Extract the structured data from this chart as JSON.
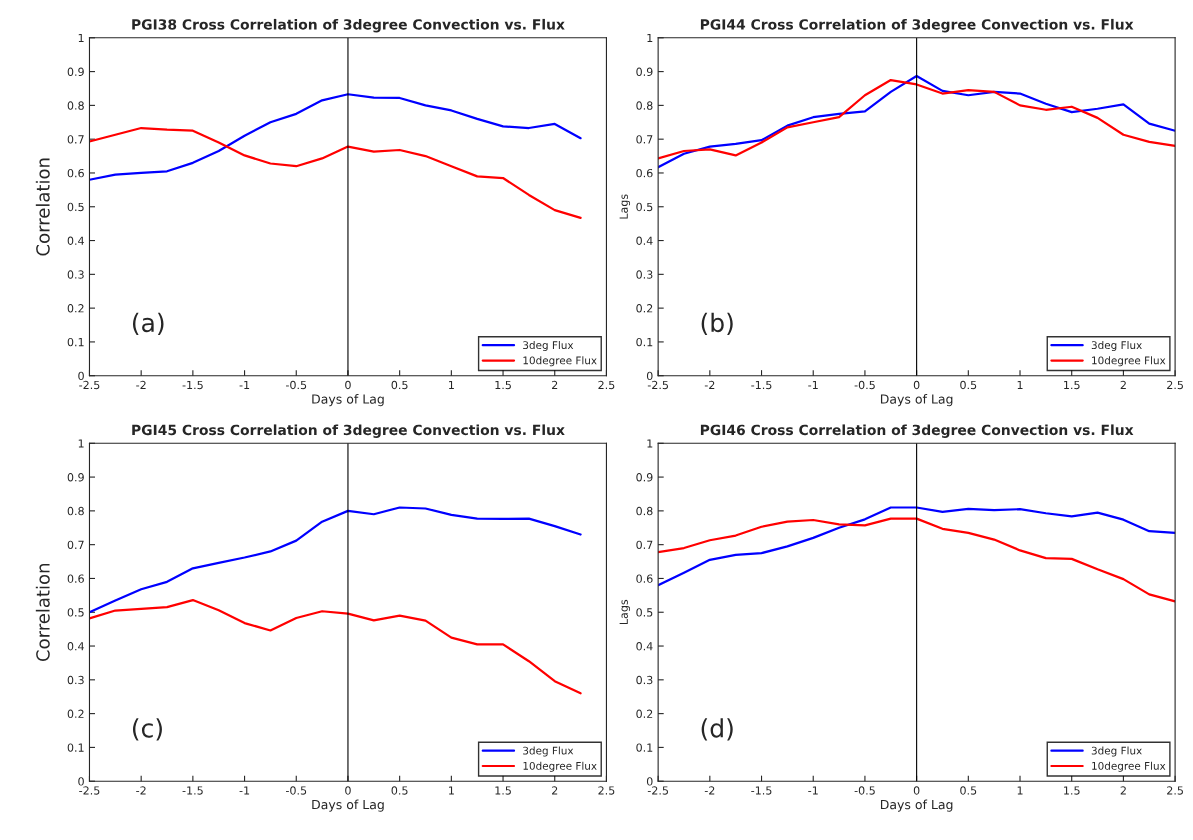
{
  "chart_data": [
    {
      "type": "line",
      "title": "PGI38 Cross Correlation of 3degree Convection vs. Flux",
      "xlabel": "Days of Lag",
      "ylabel": "Correlation",
      "annotations": [
        "(a)"
      ],
      "x": [
        -2.5,
        -2.25,
        -2,
        -1.75,
        -1.5,
        -1.25,
        -1,
        -0.75,
        -0.5,
        -0.25,
        0,
        0.25,
        0.5,
        0.75,
        1,
        1.25,
        1.5,
        1.75,
        2,
        2.25
      ],
      "series": [
        {
          "name": "3deg Flux",
          "color": "#0000ff",
          "values": [
            0.58,
            0.595,
            0.6,
            0.605,
            0.63,
            0.665,
            0.71,
            0.75,
            0.775,
            0.815,
            0.833,
            0.823,
            0.822,
            0.8,
            0.785,
            0.76,
            0.738,
            0.733,
            0.745,
            0.703
          ]
        },
        {
          "name": "10degree Flux",
          "color": "#ff0000",
          "values": [
            0.693,
            0.713,
            0.733,
            0.728,
            0.725,
            0.69,
            0.652,
            0.628,
            0.62,
            0.643,
            0.678,
            0.663,
            0.668,
            0.65,
            0.62,
            0.59,
            0.585,
            0.535,
            0.49,
            0.467
          ]
        }
      ],
      "xlim": [
        -2.5,
        2.5
      ],
      "ylim": [
        0,
        1
      ],
      "xticks": [
        -2.5,
        -2,
        -1.5,
        -1,
        -0.5,
        0,
        0.5,
        1,
        1.5,
        2,
        2.5
      ],
      "yticks": [
        0,
        0.1,
        0.2,
        0.3,
        0.4,
        0.5,
        0.6,
        0.7,
        0.8,
        0.9,
        1
      ],
      "ref_lines": [
        {
          "axis": "x",
          "value": 0,
          "color": "#000000"
        }
      ],
      "legend": "bottom right",
      "grid": false
    },
    {
      "type": "line",
      "title": "PGI44 Cross Correlation of 3degree Convection vs. Flux",
      "xlabel": "Days of Lag",
      "ylabel": "Lags",
      "annotations": [
        "(b)"
      ],
      "x": [
        -2.5,
        -2.25,
        -2,
        -1.75,
        -1.5,
        -1.25,
        -1,
        -0.75,
        -0.5,
        -0.25,
        0,
        0.25,
        0.5,
        0.75,
        1,
        1.25,
        1.5,
        1.75,
        2,
        2.25,
        2.5
      ],
      "series": [
        {
          "name": "3deg Flux",
          "color": "#0000ff",
          "values": [
            0.617,
            0.657,
            0.678,
            0.686,
            0.697,
            0.74,
            0.765,
            0.775,
            0.782,
            0.84,
            0.887,
            0.843,
            0.83,
            0.84,
            0.835,
            0.805,
            0.78,
            0.79,
            0.803,
            0.746,
            0.725
          ]
        },
        {
          "name": "10degree Flux",
          "color": "#ff0000",
          "values": [
            0.643,
            0.665,
            0.67,
            0.652,
            0.69,
            0.735,
            0.75,
            0.765,
            0.83,
            0.875,
            0.862,
            0.835,
            0.845,
            0.84,
            0.8,
            0.787,
            0.796,
            0.763,
            0.713,
            0.692,
            0.68
          ]
        }
      ],
      "xlim": [
        -2.5,
        2.5
      ],
      "ylim": [
        0,
        1
      ],
      "xticks": [
        -2.5,
        -2,
        -1.5,
        -1,
        -0.5,
        0,
        0.5,
        1,
        1.5,
        2,
        2.5
      ],
      "yticks": [
        0,
        0.1,
        0.2,
        0.3,
        0.4,
        0.5,
        0.6,
        0.7,
        0.8,
        0.9,
        1
      ],
      "ref_lines": [
        {
          "axis": "x",
          "value": 0,
          "color": "#000000"
        }
      ],
      "legend": "bottom right",
      "grid": false
    },
    {
      "type": "line",
      "title": "PGI45 Cross Correlation of 3degree Convection vs. Flux",
      "xlabel": "Days of Lag",
      "ylabel": "Correlation",
      "annotations": [
        "(c)"
      ],
      "x": [
        -2.5,
        -2.25,
        -2,
        -1.75,
        -1.5,
        -1.25,
        -1,
        -0.75,
        -0.5,
        -0.25,
        0,
        0.25,
        0.5,
        0.75,
        1,
        1.25,
        1.5,
        1.75,
        2,
        2.25
      ],
      "series": [
        {
          "name": "3deg Flux",
          "color": "#0000ff",
          "values": [
            0.5,
            0.535,
            0.568,
            0.59,
            0.63,
            0.646,
            0.662,
            0.68,
            0.712,
            0.768,
            0.8,
            0.79,
            0.81,
            0.807,
            0.788,
            0.777,
            0.776,
            0.777,
            0.755,
            0.73
          ]
        },
        {
          "name": "10degree Flux",
          "color": "#ff0000",
          "values": [
            0.482,
            0.505,
            0.51,
            0.515,
            0.536,
            0.506,
            0.468,
            0.446,
            0.483,
            0.503,
            0.496,
            0.476,
            0.49,
            0.475,
            0.425,
            0.405,
            0.405,
            0.355,
            0.296,
            0.26
          ]
        }
      ],
      "xlim": [
        -2.5,
        2.5
      ],
      "ylim": [
        0,
        1
      ],
      "xticks": [
        -2.5,
        -2,
        -1.5,
        -1,
        -0.5,
        0,
        0.5,
        1,
        1.5,
        2,
        2.5
      ],
      "yticks": [
        0,
        0.1,
        0.2,
        0.3,
        0.4,
        0.5,
        0.6,
        0.7,
        0.8,
        0.9,
        1
      ],
      "ref_lines": [
        {
          "axis": "x",
          "value": 0,
          "color": "#000000"
        }
      ],
      "legend": "bottom right",
      "grid": false
    },
    {
      "type": "line",
      "title": "PGI46 Cross Correlation of 3degree Convection vs. Flux",
      "xlabel": "Days of Lag",
      "ylabel": "Lags",
      "annotations": [
        "(d)"
      ],
      "x": [
        -2.5,
        -2.25,
        -2,
        -1.75,
        -1.5,
        -1.25,
        -1,
        -0.75,
        -0.5,
        -0.25,
        0,
        0.25,
        0.5,
        0.75,
        1,
        1.25,
        1.5,
        1.75,
        2,
        2.25,
        2.5
      ],
      "series": [
        {
          "name": "3deg Flux",
          "color": "#0000ff",
          "values": [
            0.58,
            0.617,
            0.655,
            0.67,
            0.675,
            0.695,
            0.72,
            0.75,
            0.775,
            0.81,
            0.81,
            0.797,
            0.806,
            0.802,
            0.805,
            0.793,
            0.784,
            0.795,
            0.774,
            0.74,
            0.735
          ]
        },
        {
          "name": "10degree Flux",
          "color": "#ff0000",
          "values": [
            0.678,
            0.69,
            0.713,
            0.727,
            0.753,
            0.768,
            0.773,
            0.76,
            0.757,
            0.777,
            0.777,
            0.747,
            0.735,
            0.715,
            0.683,
            0.66,
            0.658,
            0.627,
            0.598,
            0.553,
            0.532
          ]
        }
      ],
      "xlim": [
        -2.5,
        2.5
      ],
      "ylim": [
        0,
        1
      ],
      "xticks": [
        -2.5,
        -2,
        -1.5,
        -1,
        -0.5,
        0,
        0.5,
        1,
        1.5,
        2,
        2.5
      ],
      "yticks": [
        0,
        0.1,
        0.2,
        0.3,
        0.4,
        0.5,
        0.6,
        0.7,
        0.8,
        0.9,
        1
      ],
      "ref_lines": [
        {
          "axis": "x",
          "value": 0,
          "color": "#000000"
        }
      ],
      "legend": "bottom right",
      "grid": false
    }
  ]
}
